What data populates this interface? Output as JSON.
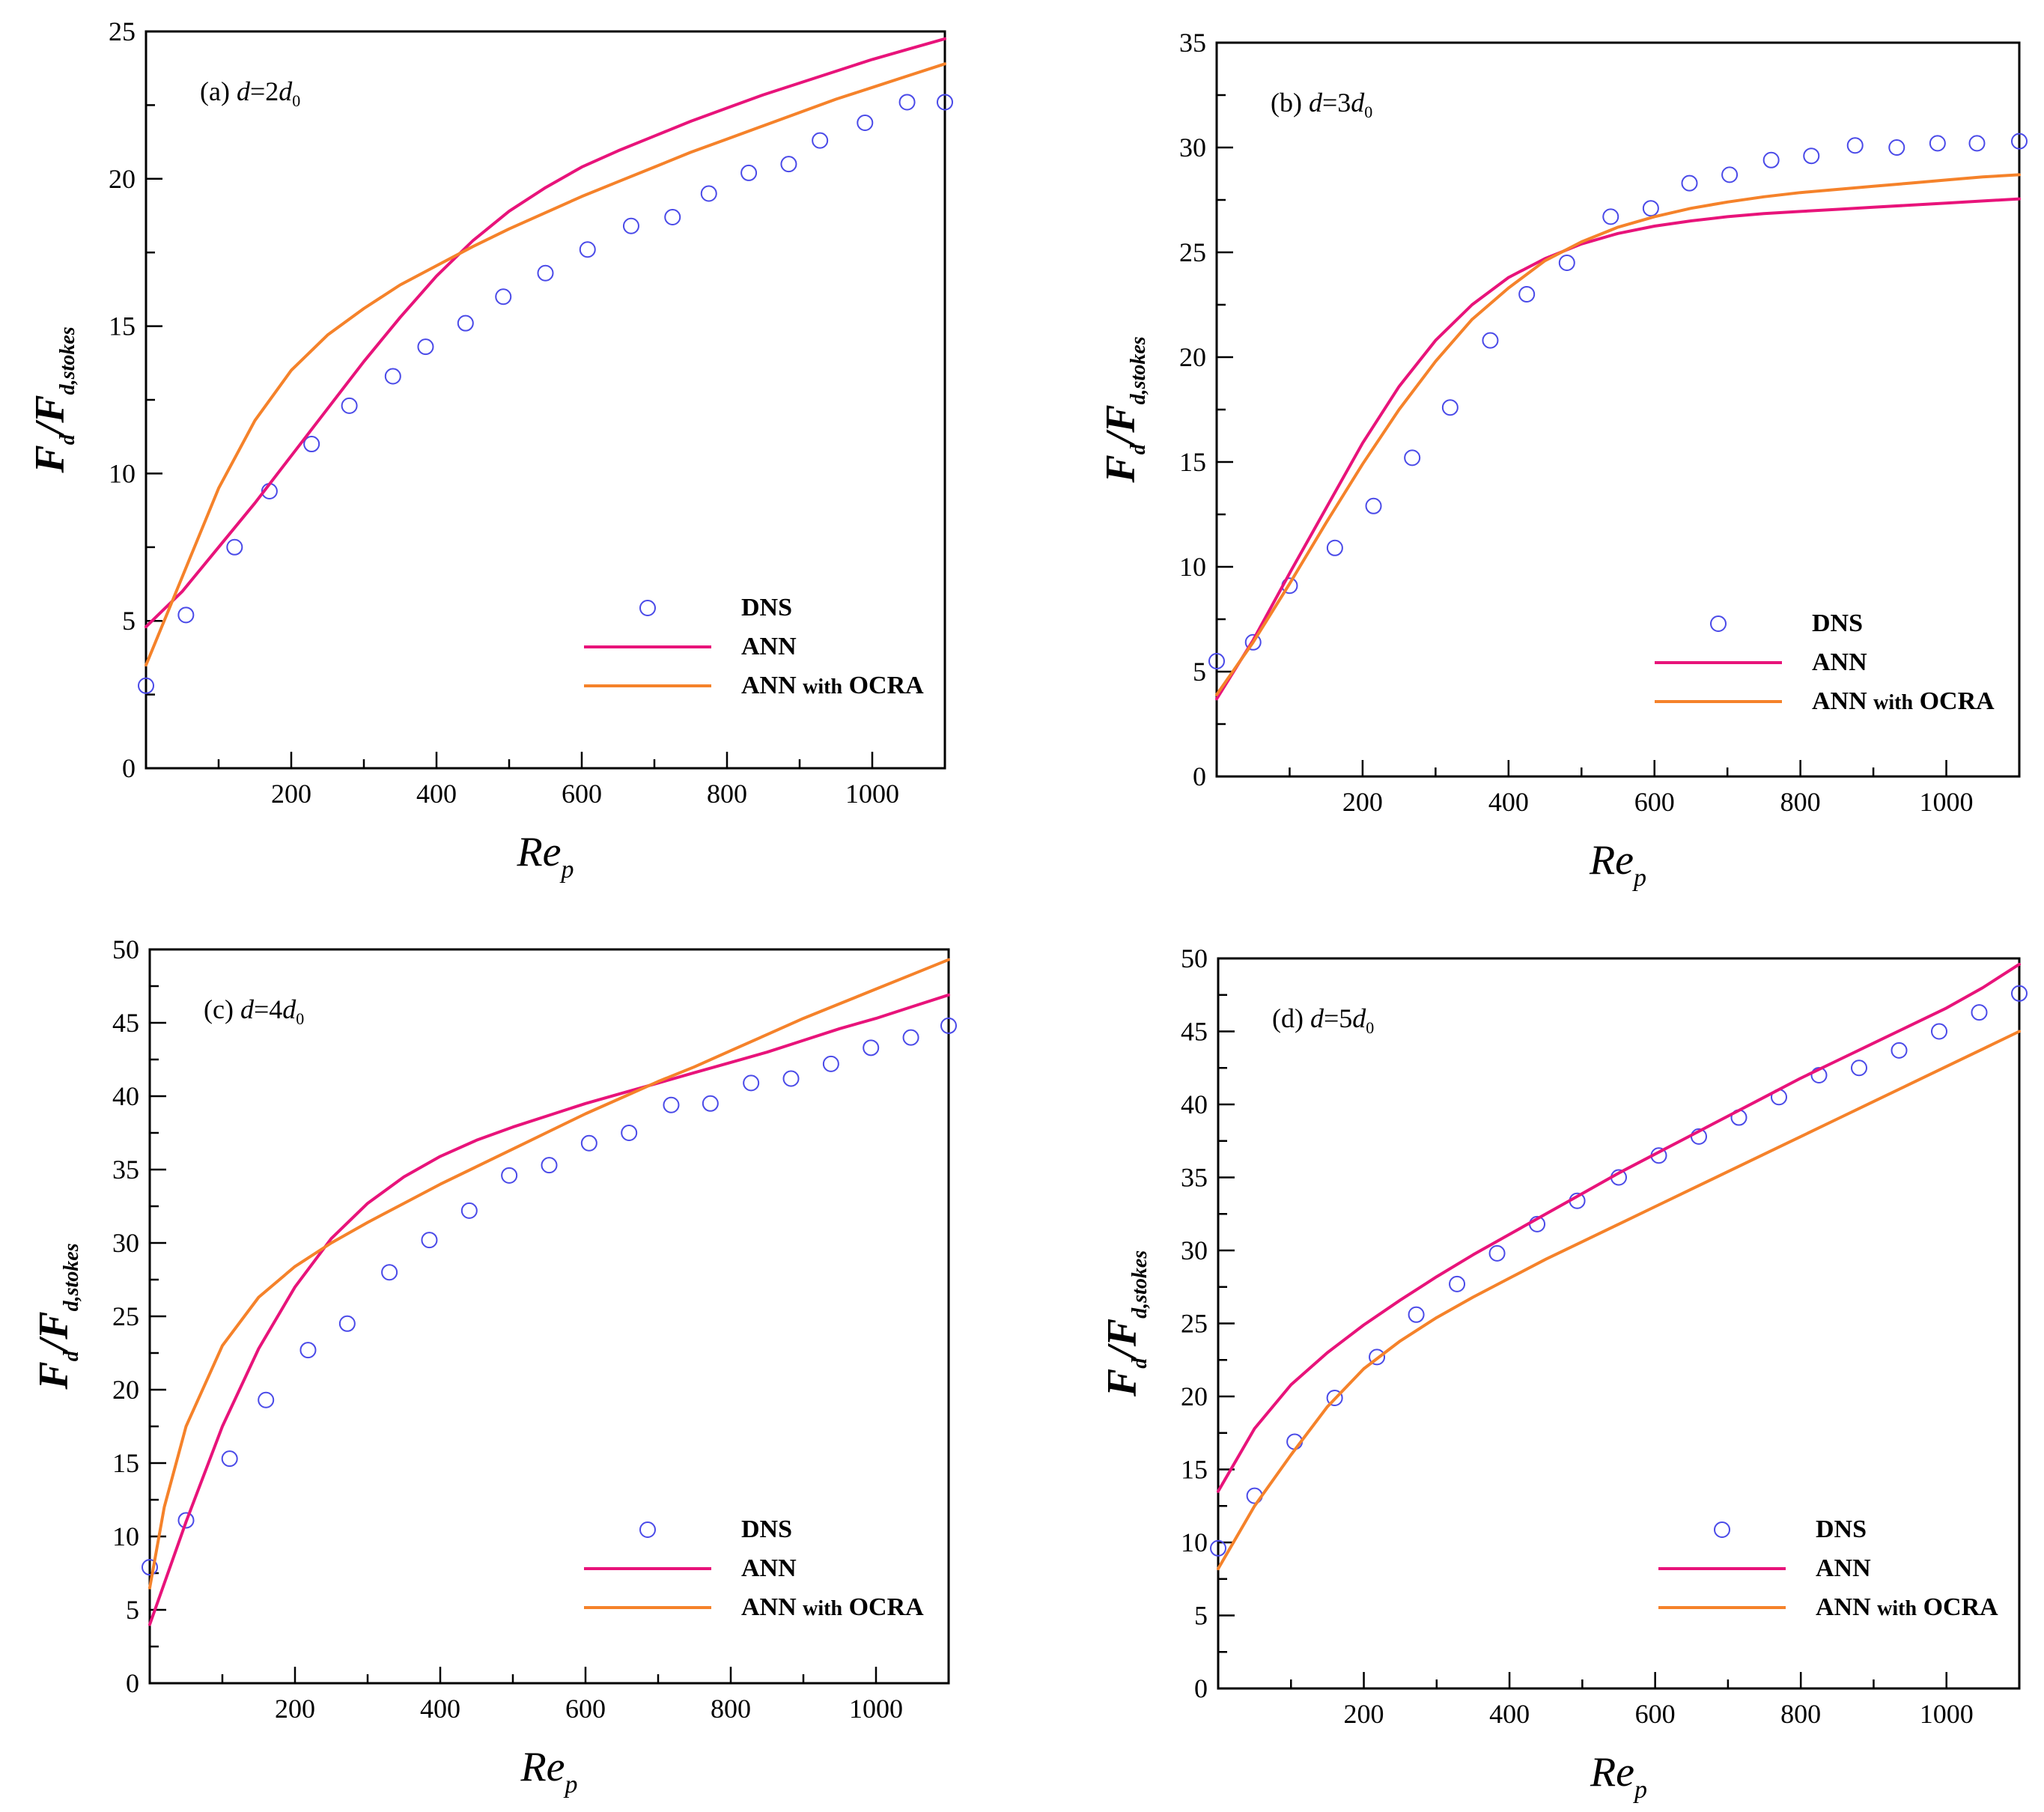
{
  "legend": {
    "dns": "DNS",
    "ann": "ANN",
    "ocra_prefix": "ANN",
    "ocra_with": "with",
    "ocra_suffix": "OCRA"
  },
  "axis_text": {
    "y_main": "F",
    "y_sub1": "d",
    "y_slash": "/F",
    "y_sub2": "d,stokes",
    "x_main": "Re",
    "x_sub": "p"
  },
  "colors": {
    "dns": "#4a4ae8",
    "ann": "#e8137a",
    "ocra": "#f5822a",
    "axis": "#000000"
  },
  "chart_data": [
    {
      "type": "line",
      "panel_id": "a",
      "title_prefix": "(a) ",
      "title_var": "d",
      "title_eq": "=2",
      "title_d0": "d",
      "title_sub": "0",
      "xlabel": "Re_p",
      "ylabel": "F_d/F_d,stokes",
      "xlim": [
        0,
        1100
      ],
      "ylim": [
        0,
        25
      ],
      "x_ticks": [
        200,
        400,
        600,
        800,
        1000
      ],
      "y_ticks": [
        0,
        5,
        10,
        15,
        20,
        25
      ],
      "series": [
        {
          "name": "DNS",
          "style": "markers",
          "x": [
            0,
            55,
            122,
            170,
            228,
            280,
            340,
            385,
            440,
            492,
            550,
            608,
            668,
            725,
            775,
            830,
            885,
            928,
            990,
            1048,
            1100
          ],
          "y": [
            2.8,
            5.2,
            7.5,
            9.4,
            11.0,
            12.3,
            13.3,
            14.3,
            15.1,
            16.0,
            16.8,
            17.6,
            18.4,
            18.7,
            19.5,
            20.2,
            20.5,
            21.3,
            21.9,
            22.6,
            22.6
          ]
        },
        {
          "name": "ANN",
          "style": "line",
          "x": [
            0,
            50,
            100,
            150,
            200,
            250,
            300,
            350,
            400,
            450,
            500,
            550,
            600,
            650,
            700,
            750,
            800,
            850,
            900,
            950,
            1000,
            1050,
            1100
          ],
          "y": [
            4.8,
            6.0,
            7.5,
            9.0,
            10.6,
            12.2,
            13.8,
            15.3,
            16.7,
            17.9,
            18.9,
            19.7,
            20.4,
            20.95,
            21.45,
            21.95,
            22.4,
            22.85,
            23.25,
            23.65,
            24.05,
            24.4,
            24.75
          ]
        },
        {
          "name": "ANN with OCRA",
          "style": "line",
          "x": [
            0,
            50,
            100,
            150,
            200,
            250,
            300,
            350,
            400,
            450,
            500,
            550,
            600,
            650,
            700,
            750,
            800,
            850,
            900,
            950,
            1000,
            1050,
            1100
          ],
          "y": [
            3.5,
            6.5,
            9.5,
            11.8,
            13.5,
            14.7,
            15.6,
            16.4,
            17.05,
            17.7,
            18.3,
            18.85,
            19.4,
            19.9,
            20.4,
            20.9,
            21.35,
            21.8,
            22.25,
            22.7,
            23.1,
            23.5,
            23.9
          ]
        }
      ]
    },
    {
      "type": "line",
      "panel_id": "b",
      "title_prefix": "(b) ",
      "title_var": "d",
      "title_eq": "=3",
      "title_d0": "d",
      "title_sub": "0",
      "xlabel": "Re_p",
      "ylabel": "F_d/F_d,stokes",
      "xlim": [
        0,
        1100
      ],
      "ylim": [
        0,
        35
      ],
      "x_ticks": [
        200,
        400,
        600,
        800,
        1000
      ],
      "y_ticks": [
        0,
        5,
        10,
        15,
        20,
        25,
        30,
        35
      ],
      "series": [
        {
          "name": "DNS",
          "style": "markers",
          "x": [
            0,
            50,
            100,
            162,
            215,
            268,
            320,
            375,
            425,
            480,
            540,
            595,
            648,
            703,
            760,
            815,
            875,
            932,
            988,
            1042,
            1100
          ],
          "y": [
            5.5,
            6.4,
            9.1,
            10.9,
            12.9,
            15.2,
            17.6,
            20.8,
            23.0,
            24.5,
            26.7,
            27.1,
            28.3,
            28.7,
            29.4,
            29.6,
            30.1,
            30.0,
            30.2,
            30.2,
            30.3
          ]
        },
        {
          "name": "ANN",
          "style": "line",
          "x": [
            0,
            50,
            100,
            150,
            200,
            250,
            300,
            350,
            400,
            450,
            500,
            550,
            600,
            650,
            700,
            750,
            800,
            850,
            900,
            950,
            1000,
            1050,
            1100
          ],
          "y": [
            3.7,
            6.5,
            9.7,
            12.8,
            15.9,
            18.6,
            20.8,
            22.5,
            23.8,
            24.7,
            25.4,
            25.9,
            26.25,
            26.5,
            26.7,
            26.85,
            26.95,
            27.05,
            27.15,
            27.25,
            27.35,
            27.45,
            27.55
          ]
        },
        {
          "name": "ANN with OCRA",
          "style": "line",
          "x": [
            0,
            50,
            100,
            150,
            200,
            250,
            300,
            350,
            400,
            450,
            500,
            550,
            600,
            650,
            700,
            750,
            800,
            850,
            900,
            950,
            1000,
            1050,
            1100
          ],
          "y": [
            3.9,
            6.4,
            9.2,
            12.1,
            14.9,
            17.5,
            19.8,
            21.8,
            23.3,
            24.6,
            25.5,
            26.2,
            26.7,
            27.1,
            27.4,
            27.65,
            27.85,
            28.0,
            28.15,
            28.3,
            28.45,
            28.6,
            28.7
          ]
        }
      ]
    },
    {
      "type": "line",
      "panel_id": "c",
      "title_prefix": "(c) ",
      "title_var": "d",
      "title_eq": "=4",
      "title_d0": "d",
      "title_sub": "0",
      "xlabel": "Re_p",
      "ylabel": "F_d/F_d,stokes",
      "xlim": [
        0,
        1100
      ],
      "ylim": [
        0,
        50
      ],
      "x_ticks": [
        200,
        400,
        600,
        800,
        1000
      ],
      "y_ticks": [
        0,
        5,
        10,
        15,
        20,
        25,
        30,
        35,
        40,
        45,
        50
      ],
      "series": [
        {
          "name": "DNS",
          "style": "markers",
          "x": [
            0,
            50,
            110,
            160,
            218,
            272,
            330,
            385,
            440,
            495,
            550,
            605,
            660,
            718,
            772,
            828,
            883,
            938,
            993,
            1048,
            1100
          ],
          "y": [
            7.9,
            11.1,
            15.3,
            19.3,
            22.7,
            24.5,
            28.0,
            30.2,
            32.2,
            34.6,
            35.3,
            36.8,
            37.5,
            39.4,
            39.5,
            40.9,
            41.2,
            42.2,
            43.3,
            44.0,
            44.8
          ]
        },
        {
          "name": "ANN",
          "style": "line",
          "x": [
            0,
            50,
            100,
            150,
            200,
            250,
            300,
            350,
            400,
            450,
            500,
            550,
            600,
            650,
            700,
            750,
            800,
            850,
            900,
            950,
            1000,
            1050,
            1100
          ],
          "y": [
            4.0,
            11.0,
            17.5,
            22.8,
            27.0,
            30.3,
            32.7,
            34.5,
            35.9,
            37.0,
            37.9,
            38.7,
            39.5,
            40.2,
            40.9,
            41.6,
            42.3,
            43.0,
            43.8,
            44.6,
            45.3,
            46.1,
            46.9
          ]
        },
        {
          "name": "ANN with OCRA",
          "style": "line",
          "x": [
            0,
            20,
            50,
            100,
            150,
            200,
            250,
            300,
            350,
            400,
            450,
            500,
            550,
            600,
            650,
            700,
            750,
            800,
            850,
            900,
            950,
            1000,
            1050,
            1100
          ],
          "y": [
            6.5,
            12.0,
            17.5,
            23.0,
            26.3,
            28.4,
            30.0,
            31.4,
            32.7,
            34.0,
            35.2,
            36.4,
            37.6,
            38.8,
            39.9,
            41.0,
            42.0,
            43.1,
            44.2,
            45.3,
            46.3,
            47.3,
            48.3,
            49.3
          ]
        }
      ]
    },
    {
      "type": "line",
      "panel_id": "d",
      "title_prefix": "(d) ",
      "title_var": "d",
      "title_eq": "=5",
      "title_d0": "d",
      "title_sub": "0",
      "xlabel": "Re_p",
      "ylabel": "F_d/F_d,stokes",
      "xlim": [
        0,
        1100
      ],
      "ylim": [
        0,
        50
      ],
      "x_ticks": [
        200,
        400,
        600,
        800,
        1000
      ],
      "y_ticks": [
        0,
        5,
        10,
        15,
        20,
        25,
        30,
        35,
        40,
        45,
        50
      ],
      "series": [
        {
          "name": "DNS",
          "style": "markers",
          "x": [
            0,
            50,
            105,
            160,
            218,
            272,
            328,
            383,
            438,
            493,
            550,
            605,
            660,
            715,
            770,
            825,
            880,
            935,
            990,
            1045,
            1100
          ],
          "y": [
            9.6,
            13.2,
            16.9,
            19.9,
            22.7,
            25.6,
            27.7,
            29.8,
            31.8,
            33.4,
            35.0,
            36.5,
            37.8,
            39.1,
            40.5,
            42.0,
            42.5,
            43.7,
            45.0,
            46.3,
            47.6
          ]
        },
        {
          "name": "ANN",
          "style": "line",
          "x": [
            0,
            50,
            100,
            150,
            200,
            250,
            300,
            350,
            400,
            450,
            500,
            550,
            600,
            650,
            700,
            750,
            800,
            850,
            900,
            950,
            1000,
            1050,
            1100
          ],
          "y": [
            13.5,
            17.8,
            20.8,
            23.0,
            24.9,
            26.6,
            28.2,
            29.7,
            31.1,
            32.5,
            33.9,
            35.3,
            36.6,
            37.9,
            39.2,
            40.5,
            41.8,
            43.0,
            44.2,
            45.4,
            46.6,
            48.0,
            49.6
          ]
        },
        {
          "name": "ANN with OCRA",
          "style": "line",
          "x": [
            0,
            50,
            100,
            150,
            200,
            250,
            300,
            350,
            400,
            450,
            500,
            550,
            600,
            650,
            700,
            750,
            800,
            850,
            900,
            950,
            1000,
            1050,
            1100
          ],
          "y": [
            8.2,
            12.5,
            16.0,
            19.3,
            21.9,
            23.8,
            25.4,
            26.8,
            28.1,
            29.4,
            30.6,
            31.8,
            33.0,
            34.2,
            35.4,
            36.6,
            37.8,
            39.0,
            40.2,
            41.4,
            42.6,
            43.8,
            45.0
          ]
        }
      ]
    }
  ]
}
